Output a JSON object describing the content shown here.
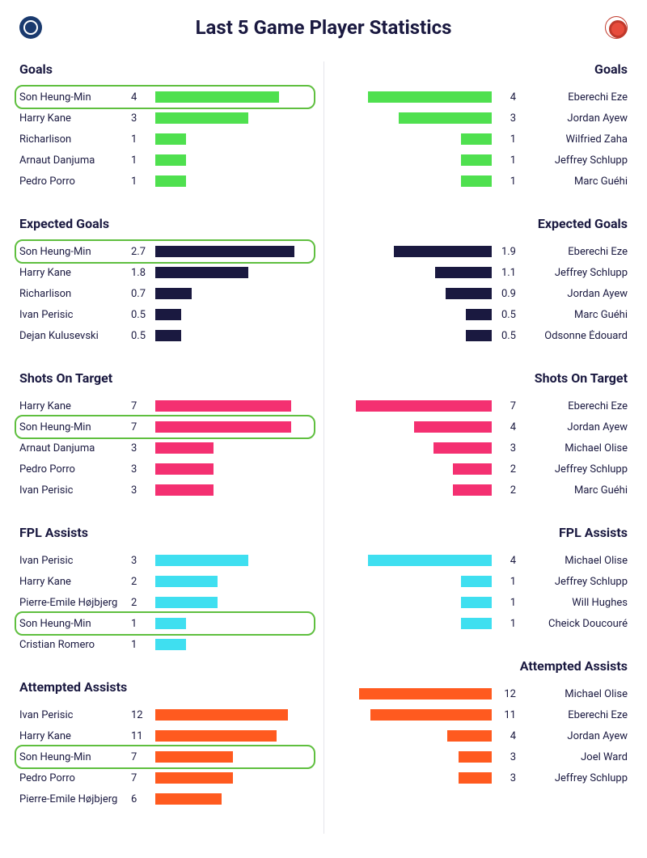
{
  "title": "Last 5 Game Player Statistics",
  "highlight_player": "Son Heung-Min",
  "highlight_border_color": "#5fbf3f",
  "colors": {
    "text": "#1a1940",
    "divider": "#e5e5ea",
    "background": "#ffffff"
  },
  "sections": [
    {
      "title": "Goals",
      "bar_color": "#4fe04f",
      "max": 5,
      "left": [
        {
          "name": "Son Heung-Min",
          "value": 4
        },
        {
          "name": "Harry Kane",
          "value": 3
        },
        {
          "name": "Richarlison",
          "value": 1
        },
        {
          "name": "Arnaut Danjuma",
          "value": 1
        },
        {
          "name": "Pedro Porro",
          "value": 1
        }
      ],
      "right": [
        {
          "name": "Eberechi Eze",
          "value": 4
        },
        {
          "name": "Jordan Ayew",
          "value": 3
        },
        {
          "name": "Wilfried Zaha",
          "value": 1
        },
        {
          "name": "Jeffrey Schlupp",
          "value": 1
        },
        {
          "name": "Marc Guéhi",
          "value": 1
        }
      ]
    },
    {
      "title": "Expected Goals",
      "bar_color": "#1a1940",
      "max": 3,
      "left": [
        {
          "name": "Son Heung-Min",
          "value": 2.7
        },
        {
          "name": "Harry Kane",
          "value": 1.8
        },
        {
          "name": "Richarlison",
          "value": 0.7
        },
        {
          "name": "Ivan Perisic",
          "value": 0.5
        },
        {
          "name": "Dejan Kulusevski",
          "value": 0.5
        }
      ],
      "right": [
        {
          "name": "Eberechi Eze",
          "value": 1.9
        },
        {
          "name": "Jeffrey Schlupp",
          "value": 1.1
        },
        {
          "name": "Jordan Ayew",
          "value": 0.9
        },
        {
          "name": "Marc Guéhi",
          "value": 0.5
        },
        {
          "name": "Odsonne Édouard",
          "value": 0.5
        }
      ]
    },
    {
      "title": "Shots On Target",
      "bar_color": "#f43071",
      "max": 8,
      "left": [
        {
          "name": "Harry Kane",
          "value": 7
        },
        {
          "name": "Son Heung-Min",
          "value": 7
        },
        {
          "name": "Arnaut Danjuma",
          "value": 3
        },
        {
          "name": "Pedro Porro",
          "value": 3
        },
        {
          "name": "Ivan Perisic",
          "value": 3
        }
      ],
      "right": [
        {
          "name": "Eberechi Eze",
          "value": 7
        },
        {
          "name": "Jordan Ayew",
          "value": 4
        },
        {
          "name": "Michael Olise",
          "value": 3
        },
        {
          "name": "Jeffrey Schlupp",
          "value": 2
        },
        {
          "name": "Marc Guéhi",
          "value": 2
        }
      ]
    },
    {
      "title": "FPL Assists",
      "bar_color": "#3fdff0",
      "max": 5,
      "left": [
        {
          "name": "Ivan Perisic",
          "value": 3
        },
        {
          "name": "Harry Kane",
          "value": 2
        },
        {
          "name": "Pierre-Emile Højbjerg",
          "value": 2
        },
        {
          "name": "Son Heung-Min",
          "value": 1
        },
        {
          "name": "Cristian Romero",
          "value": 1
        }
      ],
      "right": [
        {
          "name": "Michael Olise",
          "value": 4
        },
        {
          "name": "Jeffrey Schlupp",
          "value": 1
        },
        {
          "name": "Will Hughes",
          "value": 1
        },
        {
          "name": "Cheick Doucouré",
          "value": 1
        }
      ]
    },
    {
      "title": "Attempted Assists",
      "bar_color": "#ff5a1f",
      "max": 14,
      "left": [
        {
          "name": "Ivan Perisic",
          "value": 12
        },
        {
          "name": "Harry Kane",
          "value": 11
        },
        {
          "name": "Son Heung-Min",
          "value": 7
        },
        {
          "name": "Pedro Porro",
          "value": 7
        },
        {
          "name": "Pierre-Emile Højbjerg",
          "value": 6
        }
      ],
      "right": [
        {
          "name": "Michael Olise",
          "value": 12
        },
        {
          "name": "Eberechi Eze",
          "value": 11
        },
        {
          "name": "Jordan Ayew",
          "value": 4
        },
        {
          "name": "Joel Ward",
          "value": 3
        },
        {
          "name": "Jeffrey Schlupp",
          "value": 3
        }
      ]
    }
  ]
}
